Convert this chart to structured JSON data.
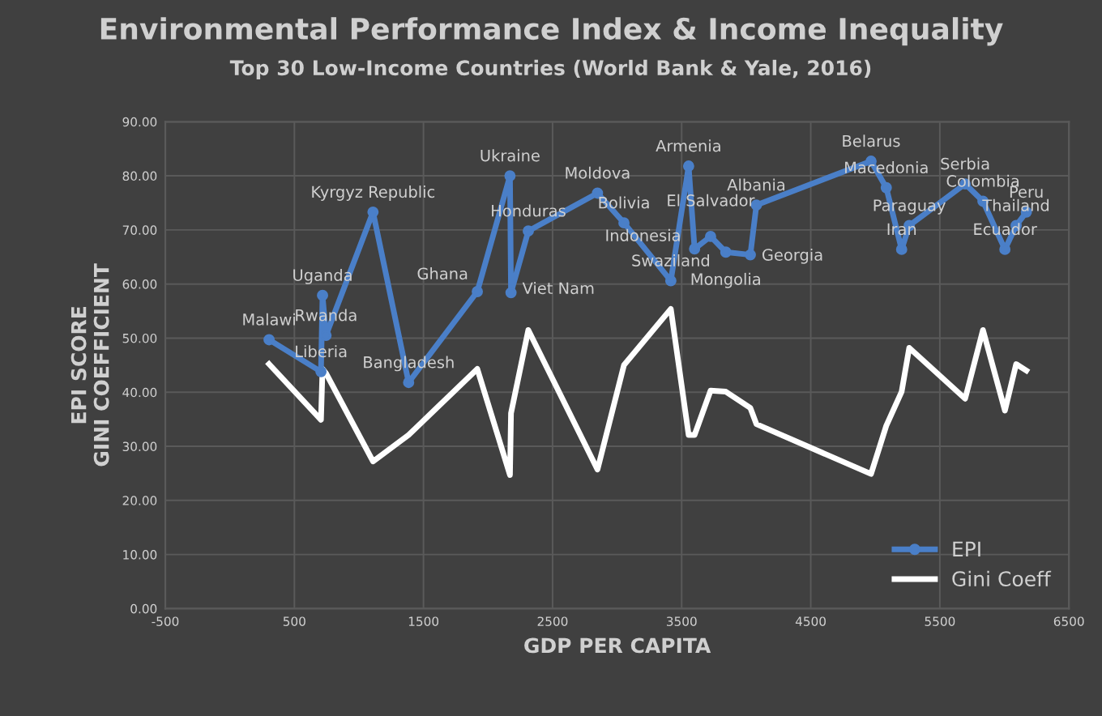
{
  "chart_data": {
    "type": "line",
    "title": "Environmental Performance Index & Income Inequality",
    "subtitle": "Top 30 Low-Income Countries (World Bank & Yale, 2016)",
    "xlabel": "GDP PER CAPITA",
    "ylabel": "EPI SCORE\nGINI COEFFICIENT",
    "x": [
      304,
      706,
      718,
      745,
      1109,
      1385,
      1917,
      2170,
      2178,
      2312,
      2848,
      3053,
      3416,
      3554,
      3600,
      3724,
      3842,
      4032,
      4079,
      4967,
      5085,
      5204,
      5263,
      5696,
      5834,
      6004,
      6091,
      6170
    ],
    "series": [
      {
        "name": "EPI",
        "color": "#4a7fc8",
        "marker": "circle",
        "values": [
          49.7,
          43.8,
          57.9,
          50.5,
          73.3,
          41.8,
          58.6,
          80.0,
          58.4,
          69.8,
          76.8,
          71.3,
          60.6,
          81.8,
          66.5,
          68.8,
          65.9,
          65.4,
          74.6,
          82.7,
          77.8,
          66.4,
          70.8,
          78.5,
          75.3,
          66.4,
          70.8,
          73.3
        ]
      },
      {
        "name": "Gini Coeff",
        "color": "#ffffff",
        "marker": "none",
        "values": [
          45.2,
          34.9,
          44.3,
          43.5,
          27.2,
          32.1,
          44.3,
          24.7,
          36.1,
          51.5,
          25.7,
          45.0,
          55.4,
          32.1,
          32.1,
          40.3,
          40.1,
          37.1,
          34.1,
          24.9,
          33.8,
          40.1,
          48.2,
          38.8,
          51.5,
          36.6,
          45.2,
          44.0
        ]
      }
    ],
    "annotations": [
      {
        "text": "Malawi",
        "x": 304,
        "y": 49.7
      },
      {
        "text": "Liberia",
        "x": 706,
        "y": 43.8
      },
      {
        "text": "Uganda",
        "x": 718,
        "y": 57.9
      },
      {
        "text": "Rwanda",
        "x": 745,
        "y": 50.5
      },
      {
        "text": "Kyrgyz Republic",
        "x": 1109,
        "y": 73.3
      },
      {
        "text": "Bangladesh",
        "x": 1385,
        "y": 41.8
      },
      {
        "text": "Ghana",
        "x": 1917,
        "y": 58.6
      },
      {
        "text": "Ukraine",
        "x": 2170,
        "y": 80.0
      },
      {
        "text": "Viet Nam",
        "x": 2178,
        "y": 58.4
      },
      {
        "text": "Honduras",
        "x": 2312,
        "y": 69.8
      },
      {
        "text": "Moldova",
        "x": 2848,
        "y": 76.8
      },
      {
        "text": "Bolivia",
        "x": 3053,
        "y": 71.3
      },
      {
        "text": "Swaziland",
        "x": 3416,
        "y": 60.6
      },
      {
        "text": "Armenia",
        "x": 3554,
        "y": 81.8
      },
      {
        "text": "Indonesia",
        "x": 3600,
        "y": 66.5
      },
      {
        "text": "El Salvador",
        "x": 3724,
        "y": 68.8
      },
      {
        "text": "Mongolia",
        "x": 3842,
        "y": 65.9
      },
      {
        "text": "Georgia",
        "x": 4032,
        "y": 65.4
      },
      {
        "text": "Albania",
        "x": 4079,
        "y": 74.6
      },
      {
        "text": "Belarus",
        "x": 4967,
        "y": 82.7
      },
      {
        "text": "Macedonia",
        "x": 5085,
        "y": 77.8
      },
      {
        "text": "Iran",
        "x": 5204,
        "y": 66.4
      },
      {
        "text": "Paraguay",
        "x": 5263,
        "y": 70.8
      },
      {
        "text": "Serbia",
        "x": 5696,
        "y": 78.5
      },
      {
        "text": "Colombia",
        "x": 5834,
        "y": 75.3
      },
      {
        "text": "Ecuador",
        "x": 6004,
        "y": 66.4
      },
      {
        "text": "Thailand",
        "x": 6091,
        "y": 70.8
      },
      {
        "text": "Peru",
        "x": 6170,
        "y": 73.3
      }
    ],
    "xlim": [
      -500,
      6500
    ],
    "xticks": [
      -500,
      500,
      1500,
      2500,
      3500,
      4500,
      5500,
      6500
    ],
    "ylim": [
      0,
      90
    ],
    "yticks": [
      {
        "value": 0,
        "label": "0.00"
      },
      {
        "value": 10,
        "label": "10.00"
      },
      {
        "value": 20,
        "label": "20.00"
      },
      {
        "value": 30,
        "label": "30.00"
      },
      {
        "value": 40,
        "label": "40.00"
      },
      {
        "value": 50,
        "label": "50.00"
      },
      {
        "value": 60,
        "label": "60.00"
      },
      {
        "value": 70,
        "label": "70.00"
      },
      {
        "value": 80,
        "label": "80.00"
      },
      {
        "value": 90,
        "label": "90.00"
      }
    ],
    "grid": true,
    "legend": "bottom right"
  }
}
